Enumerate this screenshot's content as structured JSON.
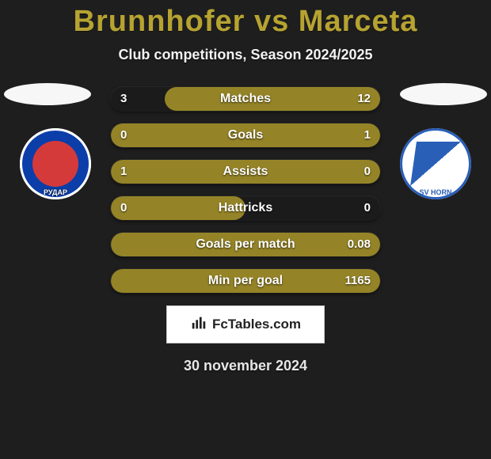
{
  "title": "Brunnhofer vs Marceta",
  "subtitle": "Club competitions, Season 2024/2025",
  "date": "30 november 2024",
  "badge_text": "FcTables.com",
  "colors": {
    "title": "#b6a331",
    "bar_fill": "#958427",
    "bar_track": "#1b1b1b",
    "background": "#1e1e1e",
    "text": "#ffffff"
  },
  "crest_left": {
    "label": "РУДАР",
    "primary": "#d43a3a",
    "ring": "#0b3ea8"
  },
  "crest_right": {
    "label": "SV HORN",
    "primary": "#2a5fb8",
    "secondary": "#ffffff"
  },
  "bars": [
    {
      "label": "Matches",
      "left": "3",
      "right": "12",
      "fill_side": "right",
      "fill_pct": 80
    },
    {
      "label": "Goals",
      "left": "0",
      "right": "1",
      "fill_side": "right",
      "fill_pct": 100
    },
    {
      "label": "Assists",
      "left": "1",
      "right": "0",
      "fill_side": "left",
      "fill_pct": 100
    },
    {
      "label": "Hattricks",
      "left": "0",
      "right": "0",
      "fill_side": "left",
      "fill_pct": 50
    },
    {
      "label": "Goals per match",
      "left": "",
      "right": "0.08",
      "fill_side": "right",
      "fill_pct": 100
    },
    {
      "label": "Min per goal",
      "left": "",
      "right": "1165",
      "fill_side": "right",
      "fill_pct": 100
    }
  ]
}
